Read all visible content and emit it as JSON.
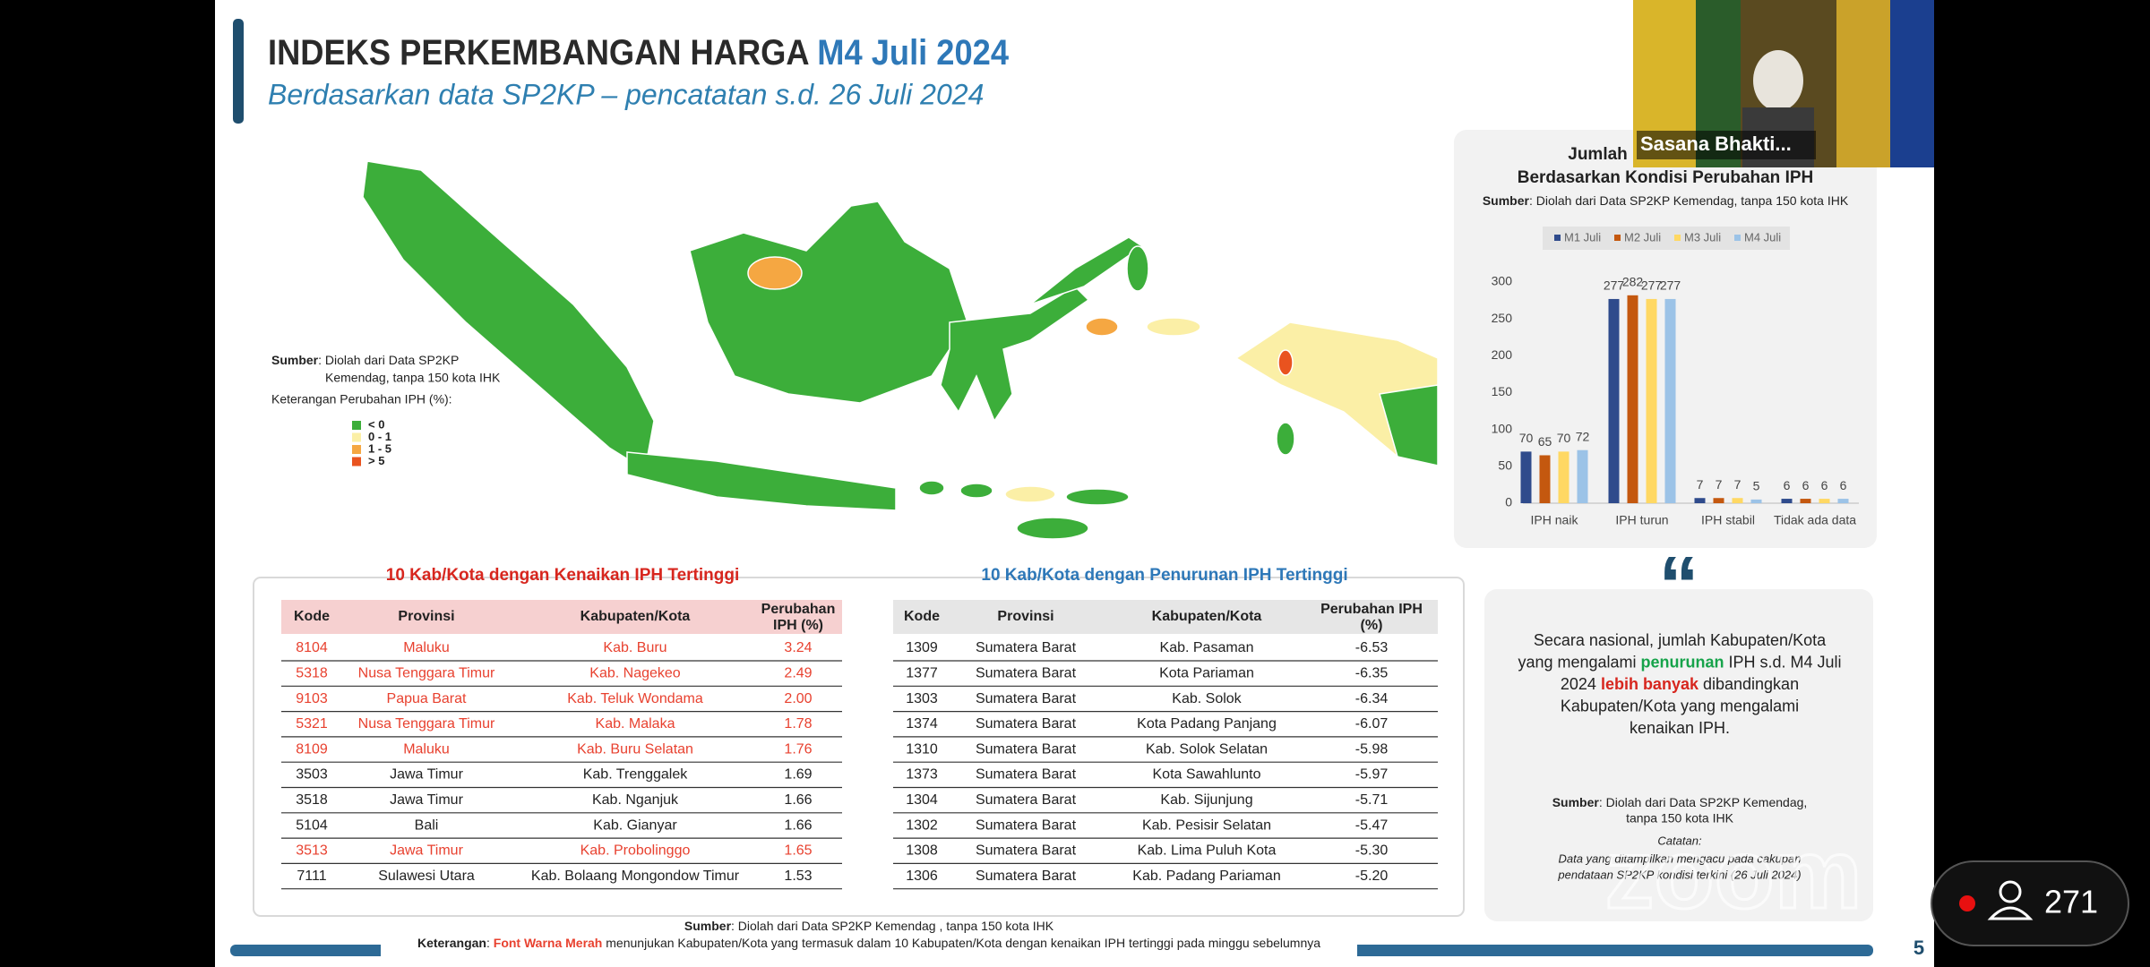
{
  "header": {
    "title": "INDEKS PERKEMBANGAN HARGA ",
    "title_highlight": "M4 Juli 2024",
    "subtitle": "Berdasarkan data SP2KP – pencatatan s.d. 26 Juli 2024"
  },
  "map": {
    "source": [
      {
        "text": "Sumber",
        "bold": true
      },
      {
        "text": ": Diolah dari Data SP2KP"
      }
    ],
    "source_line2": "Kemendag, tanpa 150 kota IHK",
    "legend_title": "Keterangan Perubahan IPH (%):",
    "legend": [
      {
        "label": "< 0",
        "color": "#3cae3a"
      },
      {
        "label": "0 - 1",
        "color": "#fbefa6"
      },
      {
        "label": "1 - 5",
        "color": "#f5a742"
      },
      {
        "label": "> 5",
        "color": "#e9531f"
      }
    ]
  },
  "chart_data": {
    "type": "bar",
    "title": "Jumlah Kabupaten/Kota",
    "subtitle": "Berdasarkan Kondisi Perubahan IPH",
    "source": [
      {
        "text": "Sumber",
        "bold": true
      },
      {
        "text": ": Diolah dari Data SP2KP Kemendag, tanpa 150 kota IHK"
      }
    ],
    "categories": [
      "IPH naik",
      "IPH turun",
      "IPH stabil",
      "Tidak ada data"
    ],
    "series": [
      {
        "name": "M1 Juli",
        "color": "#2f4b8c",
        "values": [
          70,
          277,
          7,
          6
        ]
      },
      {
        "name": "M2 Juli",
        "color": "#c4580f",
        "values": [
          65,
          282,
          7,
          6
        ]
      },
      {
        "name": "M3 Juli",
        "color": "#ffd863",
        "values": [
          70,
          277,
          7,
          6
        ]
      },
      {
        "name": "M4 Juli",
        "color": "#9cc3e7",
        "values": [
          72,
          277,
          5,
          6
        ]
      }
    ],
    "ylim": [
      0,
      300
    ],
    "yticks": [
      0,
      50,
      100,
      150,
      200,
      250,
      300
    ],
    "grid": false
  },
  "table_up": {
    "title": "10 Kab/Kota dengan Kenaikan IPH Tertinggi",
    "title_color": "#d7261e",
    "header_bg": "#f6d0d0",
    "highlight_color": "#e8412f",
    "header": [
      [
        "Kode"
      ],
      [
        "Provinsi"
      ],
      [
        "Kabupaten/Kota"
      ],
      [
        "Perubahan",
        "IPH (%)"
      ]
    ],
    "rows": [
      [
        "8104",
        "Maluku",
        "Kab. Buru",
        "3.24"
      ],
      [
        "5318",
        "Nusa Tenggara Timur",
        "Kab. Nagekeo",
        "2.49"
      ],
      [
        "9103",
        "Papua Barat",
        "Kab. Teluk Wondama",
        "2.00"
      ],
      [
        "5321",
        "Nusa Tenggara Timur",
        "Kab. Malaka",
        "1.78"
      ],
      [
        "8109",
        "Maluku",
        "Kab. Buru Selatan",
        "1.76"
      ],
      [
        "3503",
        "Jawa Timur",
        "Kab. Trenggalek",
        "1.69"
      ],
      [
        "3518",
        "Jawa Timur",
        "Kab. Nganjuk",
        "1.66"
      ],
      [
        "5104",
        "Bali",
        "Kab. Gianyar",
        "1.66"
      ],
      [
        "3513",
        "Jawa Timur",
        "Kab. Probolinggo",
        "1.65"
      ],
      [
        "7111",
        "Sulawesi Utara",
        "Kab. Bolaang Mongondow Timur",
        "1.53"
      ]
    ],
    "highlighted": [
      true,
      true,
      true,
      true,
      true,
      false,
      false,
      false,
      true,
      false
    ]
  },
  "table_down": {
    "title": "10 Kab/Kota dengan Penurunan IPH Tertinggi",
    "title_color": "#2e78b8",
    "header_bg": "#e6e6e6",
    "highlight_color": "#e8412f",
    "header": [
      [
        "Kode"
      ],
      [
        "Provinsi"
      ],
      [
        "Kabupaten/Kota"
      ],
      [
        "Perubahan IPH",
        "(%)"
      ]
    ],
    "rows": [
      [
        "1309",
        "Sumatera Barat",
        "Kab. Pasaman",
        "-6.53"
      ],
      [
        "1377",
        "Sumatera Barat",
        "Kota Pariaman",
        "-6.35"
      ],
      [
        "1303",
        "Sumatera Barat",
        "Kab. Solok",
        "-6.34"
      ],
      [
        "1374",
        "Sumatera Barat",
        "Kota Padang Panjang",
        "-6.07"
      ],
      [
        "1310",
        "Sumatera Barat",
        "Kab. Solok Selatan",
        "-5.98"
      ],
      [
        "1373",
        "Sumatera Barat",
        "Kota Sawahlunto",
        "-5.97"
      ],
      [
        "1304",
        "Sumatera Barat",
        "Kab. Sijunjung",
        "-5.71"
      ],
      [
        "1302",
        "Sumatera Barat",
        "Kab. Pesisir Selatan",
        "-5.47"
      ],
      [
        "1308",
        "Sumatera Barat",
        "Kab. Lima Puluh Kota",
        "-5.30"
      ],
      [
        "1306",
        "Sumatera Barat",
        "Kab. Padang Pariaman",
        "-5.20"
      ]
    ],
    "highlighted": [
      false,
      false,
      false,
      false,
      false,
      false,
      false,
      false,
      false,
      false
    ]
  },
  "note": {
    "quote_mark": "“",
    "lines": [
      [
        {
          "text": "Secara nasional, jumlah Kabupaten/Kota"
        }
      ],
      [
        {
          "text": "yang mengalami "
        },
        {
          "text": "penurunan",
          "bold": true,
          "color": "#16a34a"
        },
        {
          "text": " IPH s.d. M4 Juli"
        }
      ],
      [
        {
          "text": "2024 "
        },
        {
          "text": "lebih banyak",
          "bold": true,
          "color": "#d7261e"
        },
        {
          "text": " dibandingkan"
        }
      ],
      [
        {
          "text": "Kabupaten/Kota yang mengalami"
        }
      ],
      [
        {
          "text": "kenaikan IPH."
        }
      ]
    ],
    "source": [
      {
        "text": "Sumber",
        "bold": true
      },
      {
        "text": ": Diolah dari Data SP2KP Kemendag,"
      }
    ],
    "source_line2": "tanpa 150 kota IHK",
    "catatan": "Catatan:",
    "catatan_lines": [
      "Data yang ditampilkan mengacu pada cakupan",
      "pendataan SP2KP kondisi terkini (26 Juli 2024)"
    ]
  },
  "footer": {
    "source": [
      {
        "text": "Sumber",
        "bold": true
      },
      {
        "text": ": Diolah dari Data SP2KP Kemendag , tanpa 150 kota IHK"
      }
    ],
    "keterangan": [
      {
        "text": "Keterangan",
        "bold": true
      },
      {
        "text": ": "
      },
      {
        "text": "Font Warna Merah",
        "bold": true,
        "color": "#e8412f"
      },
      {
        "text": " menunjukan Kabupaten/Kota yang termasuk dalam 10 Kabupaten/Kota dengan kenaikan IPH tertinggi pada minggu sebelumnya"
      }
    ],
    "page": "5"
  },
  "zoom": {
    "participant_name": "Sasana Bhakti...",
    "participants": "271",
    "watermark": "zoom"
  }
}
